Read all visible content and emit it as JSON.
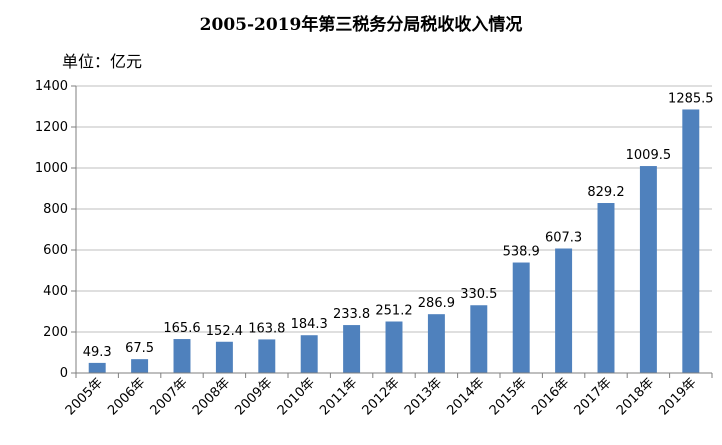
{
  "chart_data": {
    "type": "bar",
    "title": "2005-2019年第三税务分局税收收入情况",
    "unit_label": "单位：亿元",
    "categories": [
      "2005年",
      "2006年",
      "2007年",
      "2008年",
      "2009年",
      "2010年",
      "2011年",
      "2012年",
      "2013年",
      "2014年",
      "2015年",
      "2016年",
      "2017年",
      "2018年",
      "2019年"
    ],
    "values": [
      49.3,
      67.5,
      165.6,
      152.4,
      163.8,
      184.3,
      233.8,
      251.2,
      286.9,
      330.5,
      538.9,
      607.3,
      829.2,
      1009.5,
      1285.5
    ],
    "data_labels": [
      "49.3",
      "67.5",
      "165.6",
      "152.4",
      "163.8",
      "184.3",
      "233.8",
      "251.2",
      "286.9",
      "330.5",
      "538.9",
      "607.3",
      "829.2",
      "1009.5",
      "1285.5"
    ],
    "ylim": [
      0,
      1400
    ],
    "yticks": [
      "0",
      "200",
      "400",
      "600",
      "800",
      "1000",
      "1200",
      "1400"
    ],
    "bar_color": "#4F81BD",
    "grid": true
  }
}
